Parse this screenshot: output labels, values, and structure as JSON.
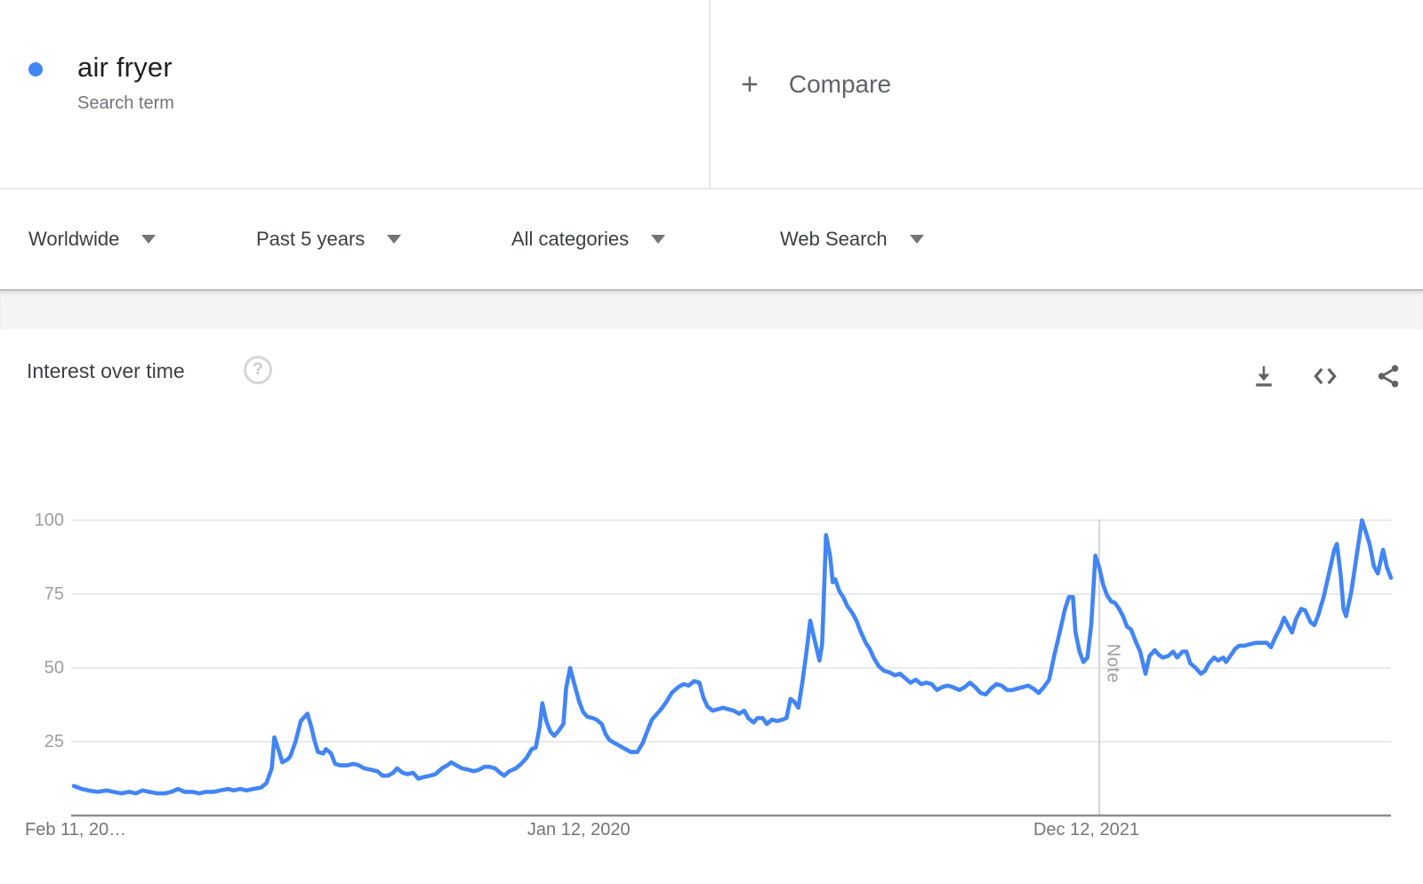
{
  "header": {
    "term": "air fryer",
    "term_subtitle": "Search term",
    "compare_plus": "+",
    "compare_label": "Compare",
    "accent_color": "#4285f4"
  },
  "filters": {
    "geo": "Worldwide",
    "time": "Past 5 years",
    "category": "All categories",
    "property": "Web Search"
  },
  "chart_header": {
    "title": "Interest over time",
    "help_glyph": "?"
  },
  "chart_data": {
    "type": "line",
    "title": "Interest over time",
    "grid": true,
    "legend_position": "none",
    "ylim": [
      0,
      100
    ],
    "y_ticks": [
      25,
      50,
      75,
      100
    ],
    "x_ticks": [
      {
        "label": "Feb 11, 20…",
        "t": 0.0
      },
      {
        "label": "Jan 12, 2020",
        "t": 0.3846
      },
      {
        "label": "Dec 12, 2021",
        "t": 0.7692
      }
    ],
    "note": {
      "label": "Note",
      "t": 0.779
    },
    "series": [
      {
        "name": "air fryer",
        "color": "#4285f4",
        "points": [
          [
            0.002,
            10
          ],
          [
            0.008,
            9
          ],
          [
            0.013,
            8.5
          ],
          [
            0.02,
            8
          ],
          [
            0.027,
            8.5
          ],
          [
            0.032,
            8
          ],
          [
            0.038,
            7.5
          ],
          [
            0.044,
            8
          ],
          [
            0.049,
            7.5
          ],
          [
            0.054,
            8.5
          ],
          [
            0.059,
            8
          ],
          [
            0.065,
            7.5
          ],
          [
            0.071,
            7.5
          ],
          [
            0.076,
            8
          ],
          [
            0.081,
            9
          ],
          [
            0.086,
            8
          ],
          [
            0.092,
            8
          ],
          [
            0.097,
            7.5
          ],
          [
            0.102,
            8
          ],
          [
            0.108,
            8
          ],
          [
            0.113,
            8.5
          ],
          [
            0.119,
            9
          ],
          [
            0.123,
            8.5
          ],
          [
            0.128,
            9
          ],
          [
            0.133,
            8.5
          ],
          [
            0.138,
            9
          ],
          [
            0.144,
            9.5
          ],
          [
            0.148,
            11
          ],
          [
            0.152,
            16
          ],
          [
            0.154,
            26.5
          ],
          [
            0.158,
            21
          ],
          [
            0.16,
            18
          ],
          [
            0.164,
            19
          ],
          [
            0.166,
            20
          ],
          [
            0.17,
            25
          ],
          [
            0.174,
            32
          ],
          [
            0.179,
            34.5
          ],
          [
            0.182,
            30
          ],
          [
            0.184,
            26
          ],
          [
            0.187,
            21.5
          ],
          [
            0.191,
            21
          ],
          [
            0.193,
            22.5
          ],
          [
            0.197,
            21
          ],
          [
            0.2,
            17.5
          ],
          [
            0.204,
            17
          ],
          [
            0.209,
            17
          ],
          [
            0.214,
            17.5
          ],
          [
            0.218,
            17
          ],
          [
            0.222,
            16
          ],
          [
            0.227,
            15.5
          ],
          [
            0.232,
            15
          ],
          [
            0.236,
            13.5
          ],
          [
            0.24,
            13.5
          ],
          [
            0.244,
            14.5
          ],
          [
            0.247,
            16
          ],
          [
            0.251,
            14.5
          ],
          [
            0.255,
            14
          ],
          [
            0.259,
            14.5
          ],
          [
            0.263,
            12.5
          ],
          [
            0.267,
            13
          ],
          [
            0.272,
            13.5
          ],
          [
            0.276,
            14
          ],
          [
            0.281,
            16
          ],
          [
            0.285,
            17
          ],
          [
            0.288,
            18
          ],
          [
            0.292,
            17
          ],
          [
            0.296,
            16
          ],
          [
            0.301,
            15.5
          ],
          [
            0.305,
            15
          ],
          [
            0.309,
            15.5
          ],
          [
            0.313,
            16.5
          ],
          [
            0.317,
            16.5
          ],
          [
            0.321,
            16
          ],
          [
            0.325,
            14.5
          ],
          [
            0.328,
            13.5
          ],
          [
            0.332,
            15
          ],
          [
            0.337,
            16
          ],
          [
            0.341,
            17.5
          ],
          [
            0.345,
            19.5
          ],
          [
            0.349,
            22.5
          ],
          [
            0.352,
            23
          ],
          [
            0.355,
            30
          ],
          [
            0.357,
            38
          ],
          [
            0.36,
            32
          ],
          [
            0.363,
            28.5
          ],
          [
            0.366,
            27
          ],
          [
            0.369,
            28.5
          ],
          [
            0.373,
            31
          ],
          [
            0.375,
            43
          ],
          [
            0.378,
            50
          ],
          [
            0.381,
            45
          ],
          [
            0.385,
            38.5
          ],
          [
            0.388,
            35
          ],
          [
            0.391,
            33.5
          ],
          [
            0.395,
            33
          ],
          [
            0.398,
            32.5
          ],
          [
            0.402,
            31
          ],
          [
            0.405,
            27.5
          ],
          [
            0.408,
            25.5
          ],
          [
            0.412,
            24.5
          ],
          [
            0.416,
            23.5
          ],
          [
            0.42,
            22.5
          ],
          [
            0.424,
            21.5
          ],
          [
            0.429,
            21.5
          ],
          [
            0.433,
            24.5
          ],
          [
            0.436,
            28
          ],
          [
            0.44,
            32.5
          ],
          [
            0.444,
            34.5
          ],
          [
            0.447,
            36
          ],
          [
            0.451,
            38.5
          ],
          [
            0.455,
            41.5
          ],
          [
            0.46,
            43.5
          ],
          [
            0.464,
            44.5
          ],
          [
            0.468,
            44
          ],
          [
            0.472,
            45.5
          ],
          [
            0.476,
            45
          ],
          [
            0.479,
            40
          ],
          [
            0.482,
            37
          ],
          [
            0.486,
            35.5
          ],
          [
            0.49,
            36
          ],
          [
            0.494,
            36.5
          ],
          [
            0.498,
            36
          ],
          [
            0.502,
            35.5
          ],
          [
            0.506,
            34.5
          ],
          [
            0.51,
            35.5
          ],
          [
            0.513,
            33
          ],
          [
            0.517,
            31.5
          ],
          [
            0.52,
            33
          ],
          [
            0.524,
            33
          ],
          [
            0.527,
            31
          ],
          [
            0.531,
            32.5
          ],
          [
            0.535,
            32
          ],
          [
            0.539,
            32.5
          ],
          [
            0.542,
            33
          ],
          [
            0.545,
            39.5
          ],
          [
            0.548,
            38.5
          ],
          [
            0.551,
            36.5
          ],
          [
            0.554,
            45
          ],
          [
            0.557,
            55
          ],
          [
            0.56,
            66
          ],
          [
            0.563,
            60
          ],
          [
            0.567,
            52.5
          ],
          [
            0.569,
            58
          ],
          [
            0.572,
            95
          ],
          [
            0.575,
            88
          ],
          [
            0.577,
            79
          ],
          [
            0.579,
            80
          ],
          [
            0.582,
            76
          ],
          [
            0.585,
            74
          ],
          [
            0.588,
            71
          ],
          [
            0.592,
            68.5
          ],
          [
            0.595,
            66
          ],
          [
            0.598,
            62.5
          ],
          [
            0.602,
            58.5
          ],
          [
            0.605,
            56.5
          ],
          [
            0.608,
            53.5
          ],
          [
            0.612,
            50.5
          ],
          [
            0.616,
            49
          ],
          [
            0.62,
            48.5
          ],
          [
            0.624,
            47.5
          ],
          [
            0.628,
            48
          ],
          [
            0.632,
            46.5
          ],
          [
            0.636,
            45
          ],
          [
            0.64,
            46
          ],
          [
            0.644,
            44.5
          ],
          [
            0.648,
            45
          ],
          [
            0.652,
            44.5
          ],
          [
            0.656,
            42.5
          ],
          [
            0.66,
            43.5
          ],
          [
            0.664,
            44
          ],
          [
            0.668,
            43.5
          ],
          [
            0.673,
            42.5
          ],
          [
            0.677,
            43.5
          ],
          [
            0.681,
            45
          ],
          [
            0.685,
            43.5
          ],
          [
            0.689,
            41.5
          ],
          [
            0.693,
            41
          ],
          [
            0.697,
            43
          ],
          [
            0.701,
            44.5
          ],
          [
            0.705,
            44
          ],
          [
            0.709,
            42.5
          ],
          [
            0.713,
            42.5
          ],
          [
            0.717,
            43
          ],
          [
            0.721,
            43.5
          ],
          [
            0.725,
            44
          ],
          [
            0.729,
            43
          ],
          [
            0.733,
            41.5
          ],
          [
            0.737,
            43.5
          ],
          [
            0.741,
            46
          ],
          [
            0.745,
            54.5
          ],
          [
            0.749,
            62
          ],
          [
            0.753,
            70
          ],
          [
            0.756,
            74
          ],
          [
            0.759,
            74
          ],
          [
            0.761,
            62
          ],
          [
            0.764,
            55.5
          ],
          [
            0.767,
            52
          ],
          [
            0.77,
            53.5
          ],
          [
            0.773,
            65
          ],
          [
            0.776,
            88
          ],
          [
            0.779,
            84
          ],
          [
            0.782,
            78
          ],
          [
            0.785,
            74.5
          ],
          [
            0.788,
            72.5
          ],
          [
            0.791,
            72
          ],
          [
            0.794,
            70
          ],
          [
            0.797,
            67.5
          ],
          [
            0.8,
            64
          ],
          [
            0.803,
            63
          ],
          [
            0.807,
            58.5
          ],
          [
            0.81,
            55.5
          ],
          [
            0.814,
            48
          ],
          [
            0.817,
            54
          ],
          [
            0.821,
            56
          ],
          [
            0.824,
            54.5
          ],
          [
            0.827,
            53.5
          ],
          [
            0.831,
            54
          ],
          [
            0.835,
            55.5
          ],
          [
            0.838,
            53.5
          ],
          [
            0.842,
            55.5
          ],
          [
            0.845,
            55.5
          ],
          [
            0.848,
            51.5
          ],
          [
            0.852,
            50
          ],
          [
            0.856,
            48
          ],
          [
            0.859,
            49
          ],
          [
            0.862,
            51.5
          ],
          [
            0.866,
            53.5
          ],
          [
            0.869,
            52.5
          ],
          [
            0.873,
            53.5
          ],
          [
            0.875,
            52
          ],
          [
            0.879,
            54.5
          ],
          [
            0.882,
            56.5
          ],
          [
            0.885,
            57.5
          ],
          [
            0.889,
            57.5
          ],
          [
            0.893,
            58
          ],
          [
            0.898,
            58.5
          ],
          [
            0.902,
            58.5
          ],
          [
            0.906,
            58.5
          ],
          [
            0.909,
            57
          ],
          [
            0.912,
            60
          ],
          [
            0.916,
            63.5
          ],
          [
            0.919,
            67
          ],
          [
            0.922,
            64.5
          ],
          [
            0.925,
            62
          ],
          [
            0.928,
            66.5
          ],
          [
            0.932,
            70
          ],
          [
            0.935,
            69.5
          ],
          [
            0.939,
            65.5
          ],
          [
            0.942,
            64.5
          ],
          [
            0.945,
            68
          ],
          [
            0.949,
            74
          ],
          [
            0.953,
            82
          ],
          [
            0.957,
            90
          ],
          [
            0.959,
            92
          ],
          [
            0.962,
            81
          ],
          [
            0.964,
            70
          ],
          [
            0.966,
            67.5
          ],
          [
            0.97,
            76
          ],
          [
            0.974,
            88
          ],
          [
            0.978,
            100
          ],
          [
            0.981,
            96
          ],
          [
            0.984,
            91.5
          ],
          [
            0.987,
            84.5
          ],
          [
            0.99,
            82
          ],
          [
            0.994,
            90
          ],
          [
            0.997,
            84
          ],
          [
            1.0,
            80.5
          ]
        ]
      }
    ]
  }
}
